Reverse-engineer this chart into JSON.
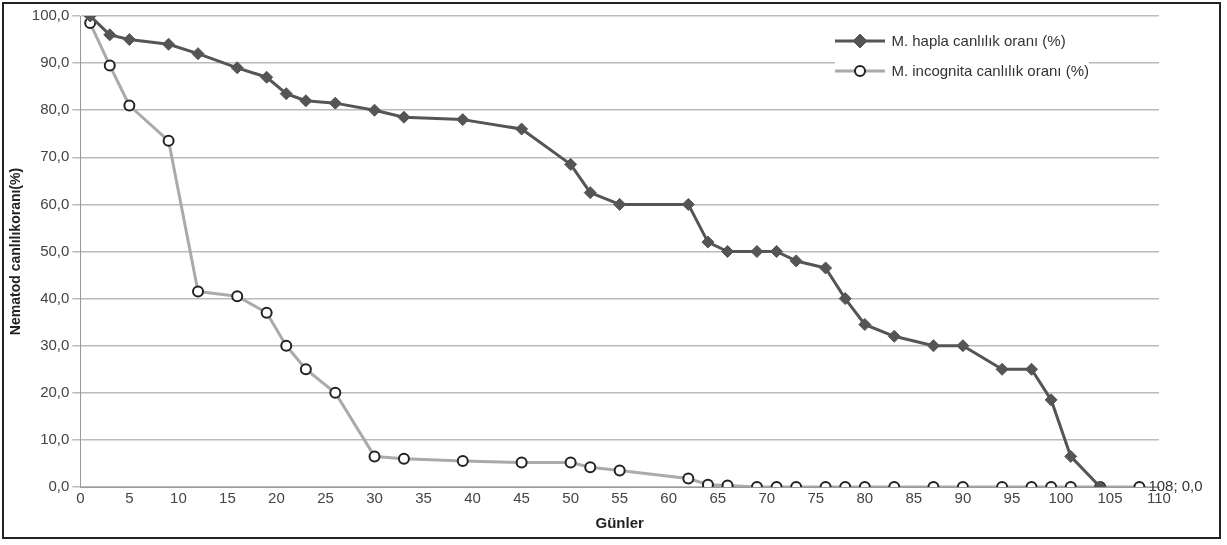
{
  "chart_data": {
    "type": "line",
    "xlabel": "Günler",
    "ylabel": "Nematod canlılıkoranı(%)",
    "xlim": [
      0,
      110
    ],
    "xticks": [
      0,
      5,
      10,
      15,
      20,
      25,
      30,
      35,
      40,
      45,
      50,
      55,
      60,
      65,
      70,
      75,
      80,
      85,
      90,
      95,
      100,
      105,
      110
    ],
    "ylim": [
      0,
      100
    ],
    "yticks": [
      {
        "value": 0,
        "label": "0,0"
      },
      {
        "value": 10,
        "label": "10,0"
      },
      {
        "value": 20,
        "label": "20,0"
      },
      {
        "value": 30,
        "label": "30,0"
      },
      {
        "value": 40,
        "label": "40,0"
      },
      {
        "value": 50,
        "label": "50,0"
      },
      {
        "value": 60,
        "label": "60,0"
      },
      {
        "value": 70,
        "label": "70,0"
      },
      {
        "value": 80,
        "label": "80,0"
      },
      {
        "value": 90,
        "label": "90,0"
      },
      {
        "value": 100,
        "label": "100,0"
      }
    ],
    "grid": "y",
    "legend": "top right",
    "line_style": "solid",
    "series": [
      {
        "name": "M. hapla canlılık oranı (%)",
        "color": "#555555",
        "marker": "diamond",
        "x": [
          1,
          3,
          5,
          9,
          12,
          16,
          19,
          21,
          23,
          26,
          30,
          33,
          39,
          45,
          50,
          52,
          55,
          62,
          64,
          66,
          69,
          71,
          73,
          76,
          78,
          80,
          83,
          87,
          90,
          94,
          97,
          99,
          101,
          104
        ],
        "values": [
          100,
          96,
          95,
          94,
          92,
          89,
          87,
          83.5,
          82,
          81.5,
          80,
          78.5,
          78,
          76,
          68.5,
          62.5,
          60,
          60,
          52,
          50,
          50,
          50,
          48,
          46.5,
          40,
          34.5,
          32,
          30,
          30,
          25,
          25,
          18.5,
          6.5,
          0
        ]
      },
      {
        "name": "M. incognita canlılık oranı (%)",
        "color": "#aaaaaa",
        "marker": "circle",
        "x": [
          1,
          3,
          5,
          9,
          12,
          16,
          19,
          21,
          23,
          26,
          30,
          33,
          39,
          45,
          50,
          52,
          55,
          62,
          64,
          66,
          69,
          71,
          73,
          76,
          78,
          80,
          83,
          87,
          90,
          94,
          97,
          99,
          101,
          104,
          108
        ],
        "values": [
          98.5,
          89.5,
          81,
          73.5,
          41.5,
          40.5,
          37,
          30,
          25,
          20,
          6.5,
          6,
          5.5,
          5.2,
          5.2,
          4.2,
          3.5,
          1.8,
          0.5,
          0.3,
          0,
          0,
          0,
          0,
          0,
          0,
          0,
          0,
          0,
          0,
          0,
          0,
          0,
          0,
          0
        ]
      }
    ],
    "annotations": [
      {
        "text": "108; 0,0",
        "x": 108,
        "y": 0
      }
    ]
  }
}
